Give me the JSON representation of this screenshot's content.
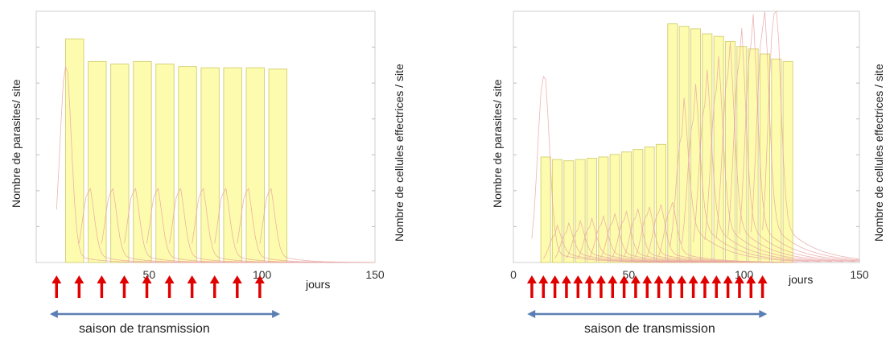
{
  "chart_data": [
    {
      "type": "bar",
      "ylabel_left": "Nombre de parasites/ site",
      "ylabel_right": "Nombre de cellules effectrices / site",
      "x_unit_label": "jours",
      "xlim": [
        0,
        150
      ],
      "x_ticks": [
        {
          "value": 50,
          "label": "50"
        },
        {
          "value": 100,
          "label": "100"
        },
        {
          "value": 150,
          "label": "150"
        }
      ],
      "ylim": [
        0,
        1
      ],
      "grid": "horizontal",
      "bars": [
        {
          "x": 17,
          "value": 0.89
        },
        {
          "x": 27,
          "value": 0.8
        },
        {
          "x": 37,
          "value": 0.79
        },
        {
          "x": 47,
          "value": 0.8
        },
        {
          "x": 57,
          "value": 0.79
        },
        {
          "x": 67,
          "value": 0.78
        },
        {
          "x": 77,
          "value": 0.775
        },
        {
          "x": 87,
          "value": 0.775
        },
        {
          "x": 97,
          "value": 0.775
        },
        {
          "x": 107,
          "value": 0.77
        }
      ],
      "bar_width": 8,
      "transmission_arrows_x": [
        9,
        19,
        29,
        39,
        49,
        59,
        69,
        79,
        89,
        99
      ],
      "season_range": [
        6,
        108
      ],
      "season_label": "saison de transmission",
      "colors": {
        "bar_fill": "#fdfba0",
        "bar_stroke": "#d8d27a",
        "curve": "#e8a0a0",
        "arrow": "#e00000",
        "season": "#5b7fb3"
      }
    },
    {
      "type": "bar",
      "ylabel_left": "Nombre de parasites/ site",
      "ylabel_right": "Nombre de cellules effectrices / site",
      "x_unit_label": "jours",
      "xlim": [
        0,
        150
      ],
      "x_ticks": [
        {
          "value": 0,
          "label": "0"
        },
        {
          "value": 50,
          "label": "50"
        },
        {
          "value": 100,
          "label": "100"
        },
        {
          "value": 150,
          "label": "150"
        }
      ],
      "ylim": [
        0,
        1
      ],
      "grid": "horizontal",
      "bars": [
        {
          "x": 14,
          "value": 0.42
        },
        {
          "x": 19,
          "value": 0.41
        },
        {
          "x": 24,
          "value": 0.405
        },
        {
          "x": 29,
          "value": 0.41
        },
        {
          "x": 34,
          "value": 0.415
        },
        {
          "x": 39,
          "value": 0.42
        },
        {
          "x": 44,
          "value": 0.43
        },
        {
          "x": 49,
          "value": 0.44
        },
        {
          "x": 54,
          "value": 0.45
        },
        {
          "x": 59,
          "value": 0.46
        },
        {
          "x": 64,
          "value": 0.47
        },
        {
          "x": 69,
          "value": 0.95
        },
        {
          "x": 74,
          "value": 0.94
        },
        {
          "x": 79,
          "value": 0.93
        },
        {
          "x": 84,
          "value": 0.91
        },
        {
          "x": 89,
          "value": 0.9
        },
        {
          "x": 94,
          "value": 0.88
        },
        {
          "x": 99,
          "value": 0.86
        },
        {
          "x": 104,
          "value": 0.85
        },
        {
          "x": 109,
          "value": 0.83
        },
        {
          "x": 114,
          "value": 0.81
        },
        {
          "x": 119,
          "value": 0.8
        }
      ],
      "bar_width": 4.2,
      "transmission_arrows_x": [
        8,
        13,
        18,
        23,
        28,
        33,
        38,
        43,
        48,
        53,
        58,
        63,
        68,
        73,
        78,
        83,
        88,
        93,
        98,
        103,
        108
      ],
      "season_range": [
        6,
        110
      ],
      "season_label": "saison de transmission",
      "colors": {
        "bar_fill": "#fdfba0",
        "bar_stroke": "#d8d27a",
        "curve": "#e8a0a0",
        "arrow": "#e00000",
        "season": "#5b7fb3"
      }
    }
  ]
}
